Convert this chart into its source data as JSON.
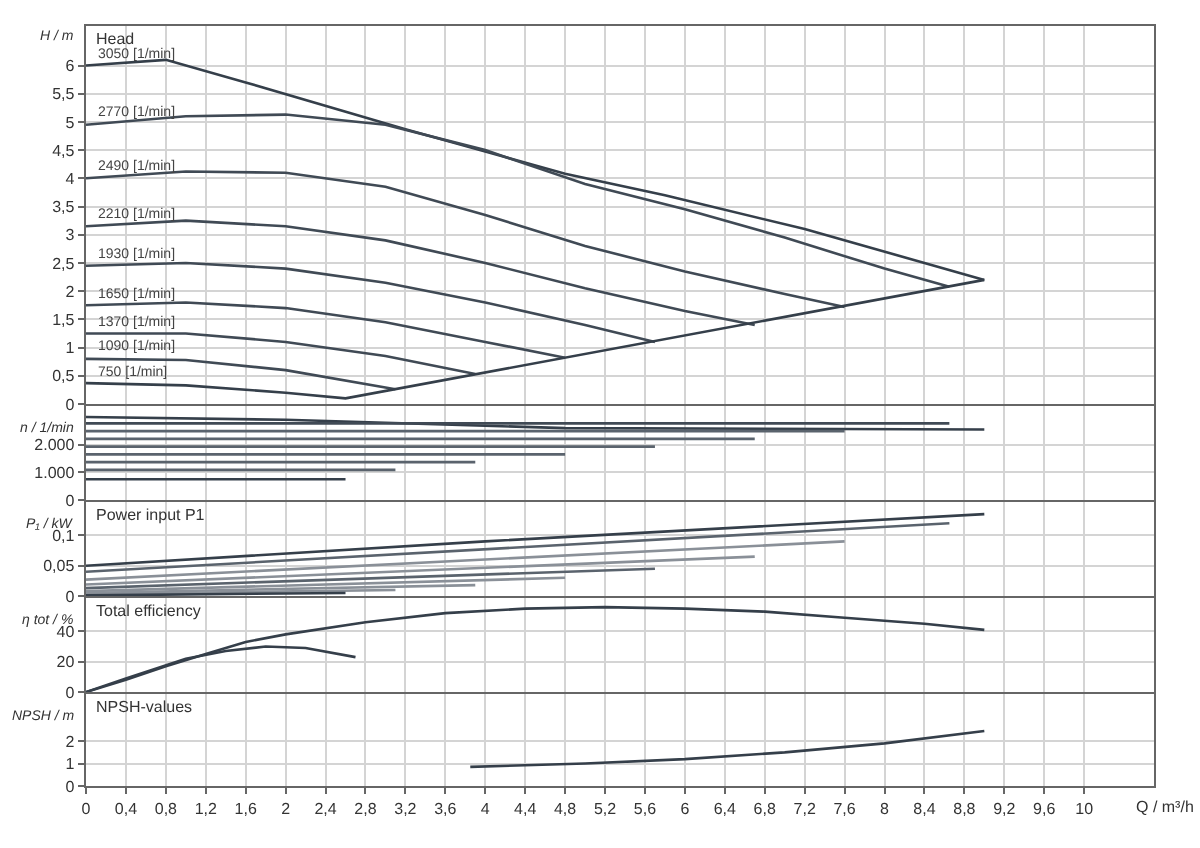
{
  "chart_data": [
    {
      "type": "line",
      "ylabel": "H / m",
      "annotations": [
        "Head"
      ],
      "legend": false,
      "grid": true,
      "tick_labels": "y",
      "xlim": [
        0,
        10.7
      ],
      "ylim": [
        0,
        6.7
      ],
      "yticks": [
        0,
        {
          "value": 0.5,
          "label": "0,5"
        },
        1,
        {
          "value": 1.5,
          "label": "1,5"
        },
        2,
        {
          "value": 2.5,
          "label": "2,5"
        },
        3,
        {
          "value": 3.5,
          "label": "3,5"
        },
        4,
        {
          "value": 4.5,
          "label": "4,5"
        },
        5,
        {
          "value": 5.5,
          "label": "5,5"
        },
        6
      ],
      "series": [
        {
          "name": "3050 [1/min]",
          "color": "#353f4a",
          "x": [
            0,
            0.8,
            1.6,
            3.2,
            4.8,
            5.8,
            7.2,
            9
          ],
          "values": [
            6.0,
            6.1,
            5.7,
            4.87,
            4.08,
            3.7,
            3.1,
            2.2
          ]
        },
        {
          "name": "2770 [1/min]",
          "color": "#404a55",
          "x": [
            0,
            1,
            2,
            3,
            4,
            5,
            6,
            7,
            8,
            8.65
          ],
          "values": [
            4.95,
            5.1,
            5.13,
            4.95,
            4.5,
            3.9,
            3.45,
            2.95,
            2.4,
            2.08
          ]
        },
        {
          "name": "2490 [1/min]",
          "color": "#404a55",
          "x": [
            0,
            1,
            2,
            3,
            4,
            5,
            6,
            7,
            7.6
          ],
          "values": [
            4.0,
            4.12,
            4.1,
            3.85,
            3.35,
            2.8,
            2.35,
            1.95,
            1.72
          ]
        },
        {
          "name": "2210 [1/min]",
          "color": "#404a55",
          "x": [
            0,
            1,
            2,
            3,
            4,
            5,
            6,
            6.7
          ],
          "values": [
            3.15,
            3.25,
            3.15,
            2.9,
            2.5,
            2.05,
            1.65,
            1.4
          ]
        },
        {
          "name": "1930 [1/min]",
          "color": "#404a55",
          "x": [
            0,
            1,
            2,
            3,
            4,
            5,
            5.7
          ],
          "values": [
            2.45,
            2.5,
            2.4,
            2.15,
            1.8,
            1.4,
            1.1
          ]
        },
        {
          "name": "1650 [1/min]",
          "color": "#404a55",
          "x": [
            0,
            1,
            2,
            3,
            4,
            4.8
          ],
          "values": [
            1.75,
            1.8,
            1.7,
            1.45,
            1.1,
            0.82
          ]
        },
        {
          "name": "1370 [1/min]",
          "color": "#404a55",
          "x": [
            0,
            1,
            2,
            3,
            3.9
          ],
          "values": [
            1.25,
            1.25,
            1.1,
            0.85,
            0.53
          ]
        },
        {
          "name": "1090 [1/min]",
          "color": "#404a55",
          "x": [
            0,
            1,
            2,
            3.1
          ],
          "values": [
            0.8,
            0.78,
            0.6,
            0.26
          ]
        },
        {
          "name": "750 [1/min]",
          "color": "#353f4a",
          "x": [
            0,
            1,
            2,
            2.6,
            9
          ],
          "values": [
            0.37,
            0.33,
            0.2,
            0.1,
            2.2
          ]
        }
      ]
    },
    {
      "type": "line",
      "ylabel": "n / 1/min",
      "legend": false,
      "grid": true,
      "tick_labels": "y",
      "xlim": [
        0,
        10.7
      ],
      "ylim": [
        0,
        3400
      ],
      "yticks": [
        0,
        {
          "value": 1000,
          "label": "1.000"
        },
        {
          "value": 2000,
          "label": "2.000"
        }
      ],
      "series": [
        {
          "color": "#353f4a",
          "x": [
            0,
            2,
            4.8,
            9
          ],
          "values": [
            3000,
            2900,
            2600,
            2550
          ]
        },
        {
          "color": "#404a55",
          "x": [
            0,
            8.65
          ],
          "values": [
            2770,
            2770
          ]
        },
        {
          "color": "#5a636d",
          "x": [
            0,
            7.6
          ],
          "values": [
            2490,
            2490
          ]
        },
        {
          "color": "#5a636d",
          "x": [
            0,
            6.7
          ],
          "values": [
            2210,
            2210
          ]
        },
        {
          "color": "#5a636d",
          "x": [
            0,
            5.7
          ],
          "values": [
            1930,
            1930
          ]
        },
        {
          "color": "#5a636d",
          "x": [
            0,
            4.8
          ],
          "values": [
            1650,
            1650
          ]
        },
        {
          "color": "#5a636d",
          "x": [
            0,
            3.9
          ],
          "values": [
            1370,
            1370
          ]
        },
        {
          "color": "#5a636d",
          "x": [
            0,
            3.1
          ],
          "values": [
            1090,
            1090
          ]
        },
        {
          "color": "#353f4a",
          "x": [
            0,
            2.6
          ],
          "values": [
            750,
            750
          ]
        }
      ]
    },
    {
      "type": "line",
      "ylabel": "P₁ / kW",
      "annotations": [
        "Power input P1"
      ],
      "legend": false,
      "grid": true,
      "tick_labels": "y",
      "xlim": [
        0,
        10.7
      ],
      "ylim": [
        0,
        0.155
      ],
      "yticks": [
        0,
        {
          "value": 0.05,
          "label": "0,05"
        },
        {
          "value": 0.1,
          "label": "0,1"
        }
      ],
      "series": [
        {
          "color": "#353f4a",
          "x": [
            0,
            4,
            9
          ],
          "values": [
            0.05,
            0.09,
            0.135
          ]
        },
        {
          "color": "#5a636d",
          "x": [
            0,
            8.65
          ],
          "values": [
            0.04,
            0.12
          ]
        },
        {
          "color": "#8a9098",
          "x": [
            0,
            7.6
          ],
          "values": [
            0.027,
            0.09
          ]
        },
        {
          "color": "#8a9098",
          "x": [
            0,
            6.7
          ],
          "values": [
            0.019,
            0.065
          ]
        },
        {
          "color": "#5a636d",
          "x": [
            0,
            5.7
          ],
          "values": [
            0.013,
            0.045
          ]
        },
        {
          "color": "#8a9098",
          "x": [
            0,
            4.8
          ],
          "values": [
            0.008,
            0.03
          ]
        },
        {
          "color": "#8a9098",
          "x": [
            0,
            3.9
          ],
          "values": [
            0.005,
            0.018
          ]
        },
        {
          "color": "#8a9098",
          "x": [
            0,
            3.1
          ],
          "values": [
            0.003,
            0.01
          ]
        },
        {
          "color": "#353f4a",
          "x": [
            0,
            2.6
          ],
          "values": [
            0.001,
            0.005
          ]
        }
      ]
    },
    {
      "type": "line",
      "ylabel": "η tot / %",
      "annotations": [
        "Total efficiency"
      ],
      "legend": false,
      "grid": true,
      "tick_labels": "y",
      "xlim": [
        0,
        10.7
      ],
      "ylim": [
        0,
        62
      ],
      "yticks": [
        0,
        20,
        40
      ],
      "series": [
        {
          "color": "#353f4a",
          "x": [
            0,
            0.4,
            0.8,
            1.2,
            1.6,
            2,
            2.8,
            3.6,
            4.4,
            5.2,
            6,
            6.8,
            7.6,
            8.4,
            9
          ],
          "values": [
            0,
            8,
            17,
            25,
            33,
            38,
            46,
            52,
            55,
            56,
            55,
            53,
            49,
            45,
            41
          ]
        },
        {
          "color": "#353f4a",
          "x": [
            0,
            0.4,
            1,
            1.4,
            1.8,
            2.2,
            2.7
          ],
          "values": [
            0,
            9,
            22,
            27,
            30,
            29,
            23
          ]
        }
      ]
    },
    {
      "type": "line",
      "ylabel": "NPSH / m",
      "xlabel": "Q / m³/h",
      "annotations": [
        "NPSH-values"
      ],
      "legend": false,
      "grid": true,
      "xlim": [
        0,
        10.7
      ],
      "xticks": [
        0,
        {
          "value": 0.4,
          "label": "0,4"
        },
        {
          "value": 0.8,
          "label": "0,8"
        },
        {
          "value": 1.2,
          "label": "1,2"
        },
        {
          "value": 1.6,
          "label": "1,6"
        },
        2,
        {
          "value": 2.4,
          "label": "2,4"
        },
        {
          "value": 2.8,
          "label": "2,8"
        },
        {
          "value": 3.2,
          "label": "3,2"
        },
        {
          "value": 3.6,
          "label": "3,6"
        },
        4,
        {
          "value": 4.4,
          "label": "4,4"
        },
        {
          "value": 4.8,
          "label": "4,8"
        },
        {
          "value": 5.2,
          "label": "5,2"
        },
        {
          "value": 5.6,
          "label": "5,6"
        },
        6,
        {
          "value": 6.4,
          "label": "6,4"
        },
        {
          "value": 6.8,
          "label": "6,8"
        },
        {
          "value": 7.2,
          "label": "7,2"
        },
        {
          "value": 7.6,
          "label": "7,6"
        },
        8,
        {
          "value": 8.4,
          "label": "8,4"
        },
        {
          "value": 8.8,
          "label": "8,8"
        },
        {
          "value": 9.2,
          "label": "9,2"
        },
        {
          "value": 9.6,
          "label": "9,6"
        },
        10
      ],
      "ylim": [
        0,
        4.1
      ],
      "yticks": [
        0,
        1,
        2
      ],
      "series": [
        {
          "color": "#353f4a",
          "x": [
            3.85,
            5,
            6,
            7,
            8,
            9
          ],
          "values": [
            0.85,
            1.0,
            1.2,
            1.5,
            1.9,
            2.45
          ]
        }
      ]
    }
  ]
}
